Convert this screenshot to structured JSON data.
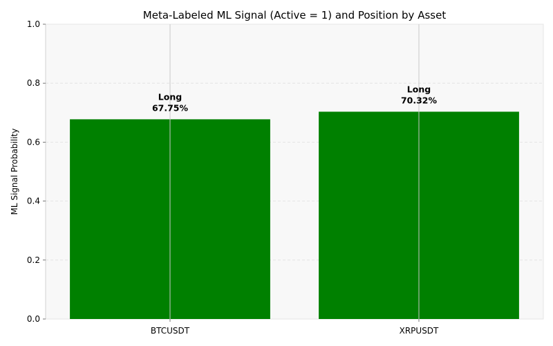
{
  "chart_data": {
    "type": "bar",
    "title": "Meta-Labeled ML Signal (Active = 1) and Position by Asset",
    "xlabel": "",
    "ylabel": "ML Signal Probability",
    "categories": [
      "BTCUSDT",
      "XRPUSDT"
    ],
    "values": [
      0.6775,
      0.7032
    ],
    "bar_labels": [
      {
        "position": "Long",
        "percent": "67.75%"
      },
      {
        "position": "Long",
        "percent": "70.32%"
      }
    ],
    "ylim": [
      0,
      1.0
    ],
    "yticks": [
      "0.0",
      "0.2",
      "0.4",
      "0.6",
      "0.8",
      "1.0"
    ],
    "grid": {
      "y": "dashed",
      "x": "solid"
    },
    "colors": {
      "bar": "#008000",
      "plot_background": "#f8f8f8",
      "grid": "#dddddd",
      "axis": "#e6e6e6"
    }
  }
}
